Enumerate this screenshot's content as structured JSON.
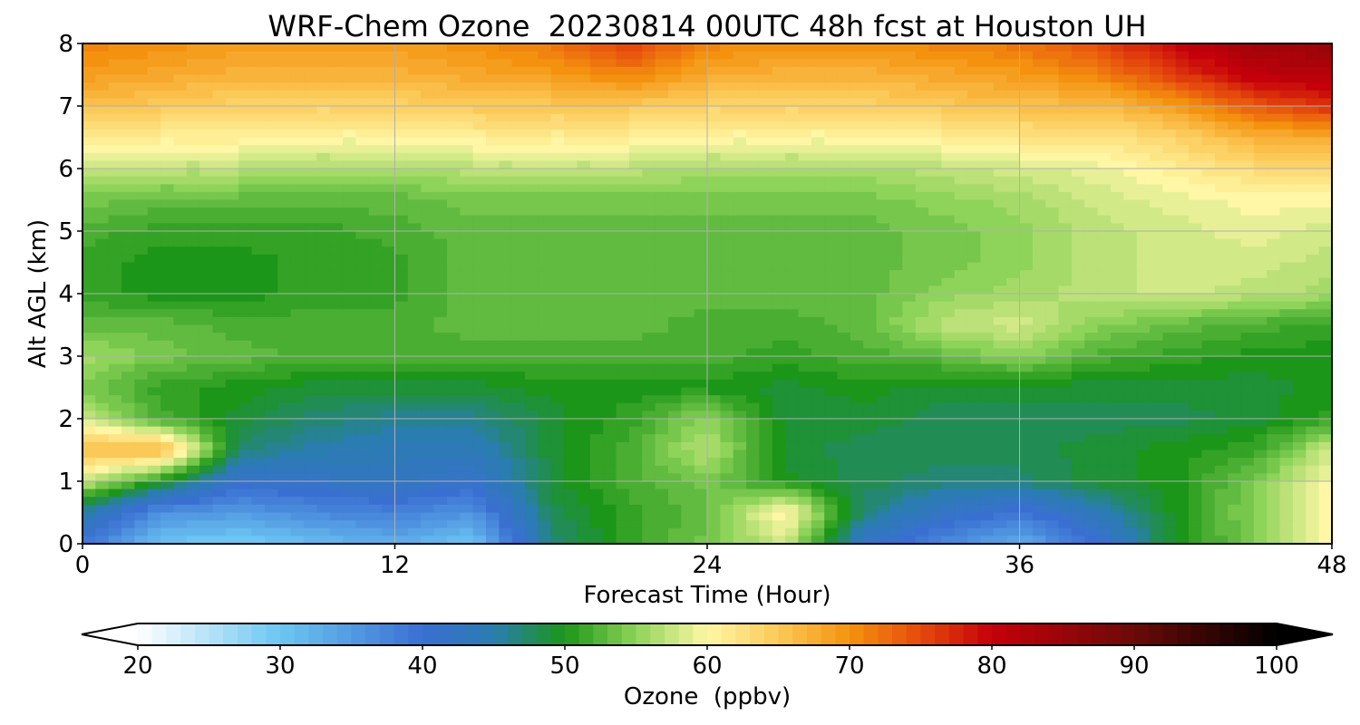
{
  "chart_data": {
    "type": "heatmap",
    "title": "WRF-Chem Ozone  20230814 00UTC 48h fcst at Houston UH",
    "xlabel": "Forecast Time (Hour)",
    "ylabel": "Alt AGL (km)",
    "xlim": [
      0,
      48
    ],
    "ylim": [
      0,
      8
    ],
    "xticks": [
      "0",
      "12",
      "24",
      "36",
      "48"
    ],
    "yticks": [
      "0",
      "1",
      "2",
      "3",
      "4",
      "5",
      "6",
      "7",
      "8"
    ],
    "grid": true,
    "x": [
      0,
      3,
      6,
      9,
      12,
      15,
      18,
      21,
      24,
      27,
      30,
      33,
      36,
      39,
      42,
      45,
      48
    ],
    "y": [
      0,
      0.5,
      1,
      1.5,
      2,
      2.5,
      3,
      3.5,
      4,
      4.5,
      5,
      5.5,
      6,
      6.5,
      7,
      7.5,
      8
    ],
    "z": [
      [
        39,
        30,
        29,
        31,
        33,
        30,
        47,
        51,
        54,
        58,
        42,
        37,
        33,
        40,
        50,
        54,
        60
      ],
      [
        45,
        36,
        35,
        37,
        38,
        36,
        48,
        51,
        53,
        61,
        47,
        42,
        39,
        44,
        50,
        55,
        60
      ],
      [
        58,
        50,
        41,
        42,
        43,
        41,
        49,
        52,
        54,
        50,
        48,
        47,
        47,
        49,
        50,
        54,
        60
      ],
      [
        66,
        67,
        47,
        45,
        44,
        44,
        49,
        52,
        57,
        49,
        48,
        48,
        48,
        49,
        50,
        51,
        58
      ],
      [
        58,
        52,
        49,
        47,
        46,
        46,
        49,
        51,
        55,
        49,
        49,
        48,
        48,
        48,
        48,
        49,
        51
      ],
      [
        54,
        51,
        50,
        49,
        49,
        49,
        50,
        50,
        50,
        49,
        50,
        49,
        49,
        49,
        49,
        49,
        50
      ],
      [
        56,
        54,
        53,
        52,
        52,
        52,
        52,
        52,
        52,
        51,
        52,
        53,
        55,
        52,
        51,
        50,
        50
      ],
      [
        53,
        53,
        52,
        52,
        52,
        53,
        53,
        53,
        52,
        52,
        53,
        57,
        58,
        55,
        53,
        52,
        51
      ],
      [
        51,
        50,
        50,
        51,
        51,
        53,
        53,
        53,
        53,
        53,
        53,
        55,
        56,
        57,
        58,
        57,
        56
      ],
      [
        51,
        50,
        50,
        51,
        51,
        53,
        53,
        53,
        53,
        53,
        53,
        54,
        55,
        57,
        58,
        58,
        57
      ],
      [
        52,
        51,
        51,
        51,
        52,
        53,
        53,
        53,
        53,
        53,
        53,
        54,
        55,
        57,
        58,
        59,
        58
      ],
      [
        54,
        53,
        53,
        53,
        53,
        54,
        54,
        54,
        54,
        54,
        54,
        55,
        56,
        58,
        59,
        60,
        60
      ],
      [
        58,
        57,
        57,
        56,
        56,
        57,
        57,
        57,
        56,
        56,
        56,
        57,
        58,
        59,
        61,
        63,
        63
      ],
      [
        62,
        61,
        61,
        60,
        60,
        61,
        61,
        61,
        60,
        60,
        60,
        61,
        62,
        62,
        64,
        67,
        68
      ],
      [
        66,
        65,
        64,
        64,
        64,
        65,
        65,
        65,
        64,
        64,
        64,
        65,
        66,
        66,
        69,
        74,
        77
      ],
      [
        69,
        68,
        67,
        67,
        67,
        68,
        69,
        71,
        68,
        67,
        67,
        68,
        69,
        71,
        76,
        81,
        82
      ],
      [
        71,
        70,
        69,
        69,
        69,
        70,
        72,
        76,
        71,
        70,
        70,
        71,
        72,
        75,
        80,
        84,
        85
      ]
    ],
    "colorbar": {
      "label": "Ozone  (ppbv)",
      "range": [
        20,
        100
      ],
      "ticks": [
        "20",
        "30",
        "40",
        "50",
        "60",
        "70",
        "80",
        "90",
        "100"
      ],
      "extend": "both",
      "stops": [
        {
          "v": 20,
          "c": "#ffffff"
        },
        {
          "v": 30,
          "c": "#6cc6f2"
        },
        {
          "v": 40,
          "c": "#3a6fd2"
        },
        {
          "v": 45,
          "c": "#2a7db0"
        },
        {
          "v": 50,
          "c": "#1c9618"
        },
        {
          "v": 55,
          "c": "#8ed35a"
        },
        {
          "v": 60,
          "c": "#fff7a6"
        },
        {
          "v": 65,
          "c": "#fbc957"
        },
        {
          "v": 70,
          "c": "#f4920f"
        },
        {
          "v": 75,
          "c": "#e54a0c"
        },
        {
          "v": 80,
          "c": "#c6000a"
        },
        {
          "v": 90,
          "c": "#6a0a08"
        },
        {
          "v": 100,
          "c": "#000000"
        }
      ]
    }
  }
}
